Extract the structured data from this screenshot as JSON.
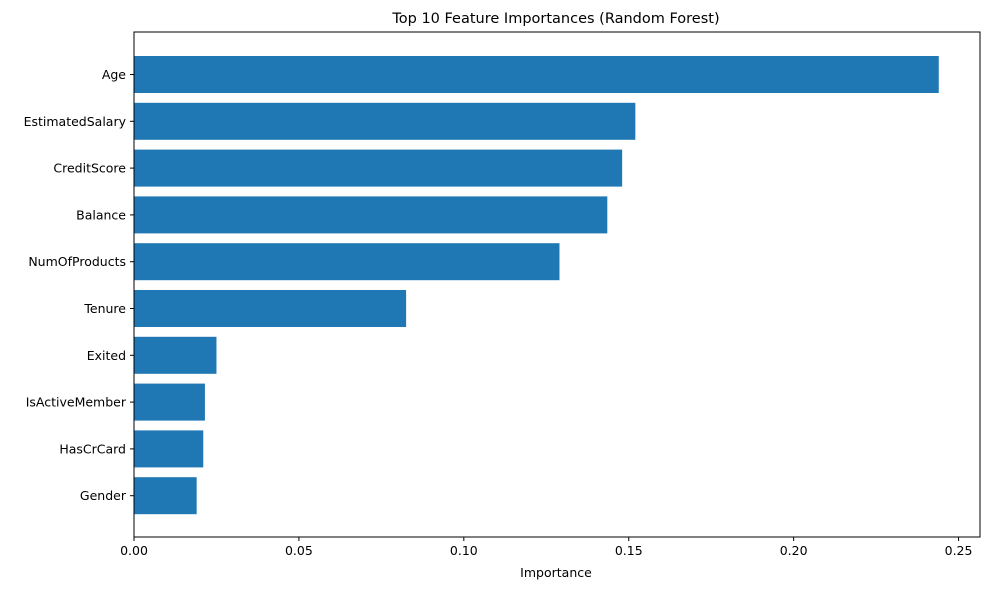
{
  "chart_data": {
    "type": "bar",
    "orientation": "horizontal",
    "title": "Top 10 Feature Importances (Random Forest)",
    "xlabel": "Importance",
    "ylabel": "",
    "categories": [
      "Age",
      "EstimatedSalary",
      "CreditScore",
      "Balance",
      "NumOfProducts",
      "Tenure",
      "Exited",
      "IsActiveMember",
      "HasCrCard",
      "Gender"
    ],
    "values": [
      0.244,
      0.152,
      0.148,
      0.1435,
      0.129,
      0.0825,
      0.025,
      0.0215,
      0.021,
      0.019
    ],
    "xlim": [
      0,
      0.2565
    ],
    "xticks": [
      0,
      0.05,
      0.1,
      0.15,
      0.2,
      0.25
    ],
    "xtick_labels": [
      "0.00",
      "0.05",
      "0.10",
      "0.15",
      "0.20",
      "0.25"
    ],
    "bar_color": "#1f77b4",
    "grid": false,
    "legend": "none"
  }
}
